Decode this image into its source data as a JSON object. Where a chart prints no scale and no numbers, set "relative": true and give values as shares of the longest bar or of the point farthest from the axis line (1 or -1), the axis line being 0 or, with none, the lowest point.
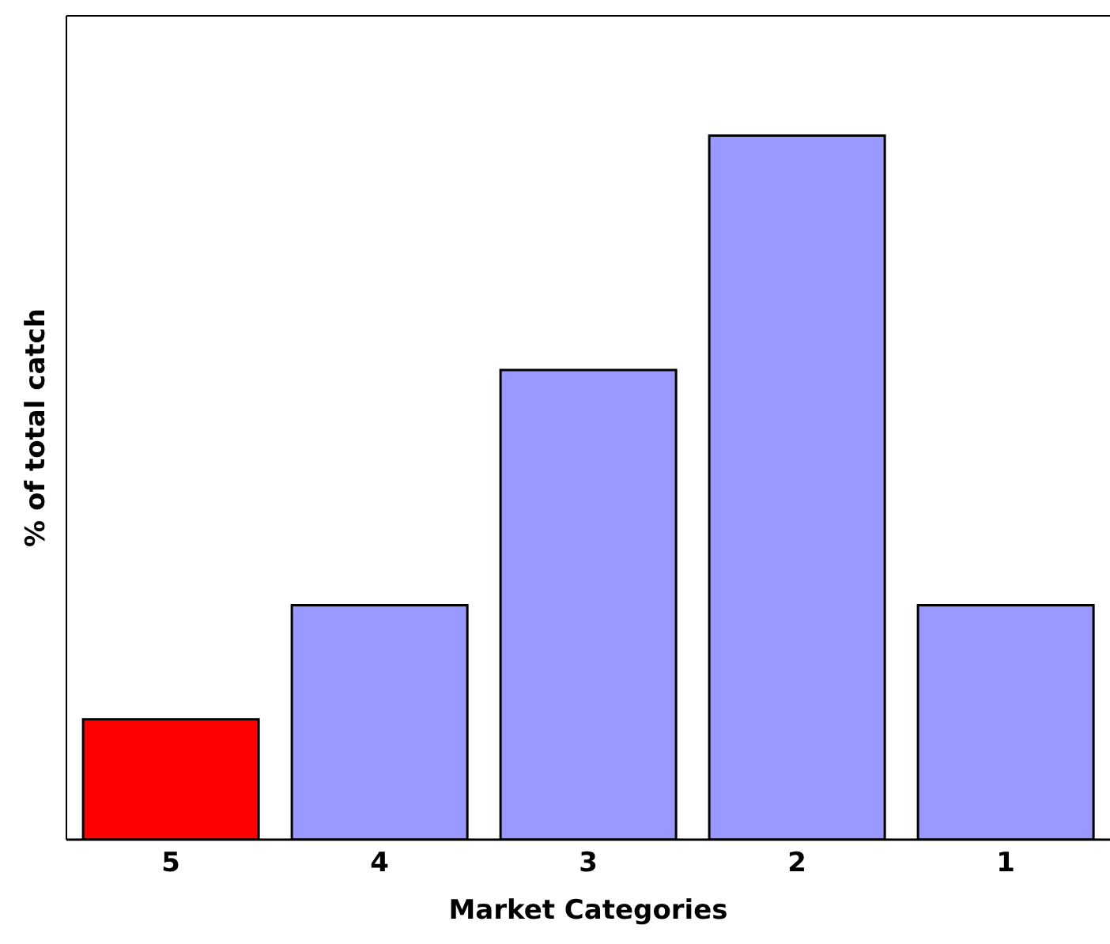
{
  "chart_data": {
    "type": "bar",
    "relative": true,
    "xlabel": "Market Categories",
    "ylabel": "% of total catch",
    "categories": [
      "5",
      "4",
      "3",
      "2",
      "1"
    ],
    "values": [
      0.171,
      0.333,
      0.667,
      1,
      0.333
    ],
    "colors": [
      "#ff0000",
      "#9999ff",
      "#9999ff",
      "#9999ff",
      "#9999ff"
    ]
  }
}
